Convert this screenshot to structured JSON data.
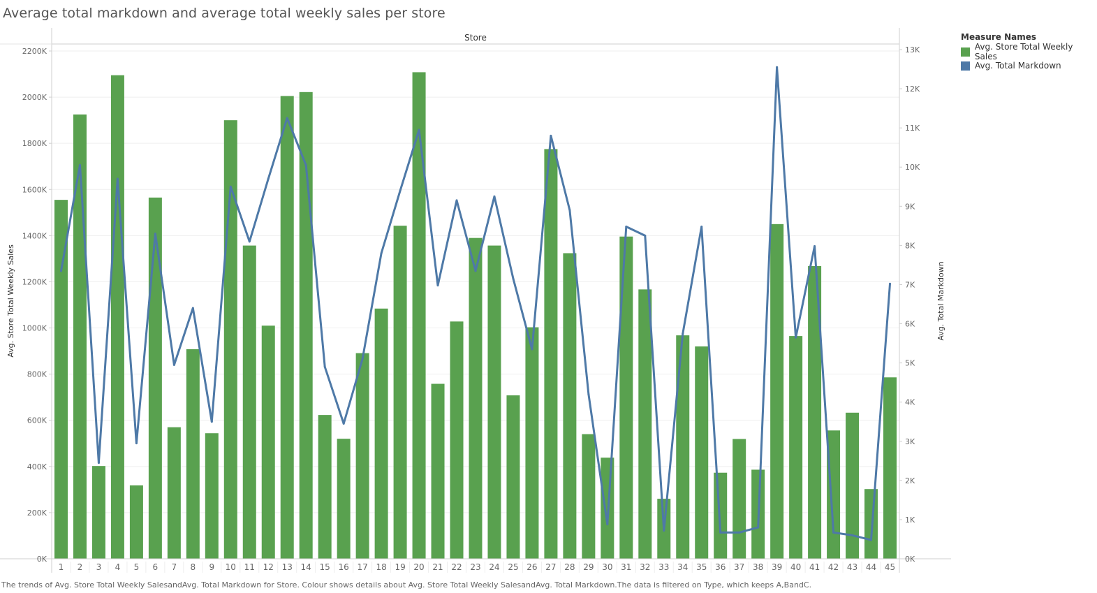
{
  "title": "Average total markdown and average total weekly sales per store",
  "caption": "The trends of Avg. Store Total Weekly SalesandAvg. Total Markdown for Store. Colour shows details about Avg. Store Total Weekly SalesandAvg. Total Markdown.The data is filtered on Type, which keeps A,BandC.",
  "legend": {
    "title": "Measure Names",
    "items": [
      {
        "label": "Avg. Store Total Weekly Sales",
        "color": "#59a14f"
      },
      {
        "label": "Avg. Total Markdown",
        "color": "#4e79a7"
      }
    ]
  },
  "chart_data": {
    "type": "bar",
    "title": "Average total markdown and average total weekly sales per store",
    "header_label": "Store",
    "xlabel": "",
    "ylabel": "Avg. Store Total Weekly Sales",
    "y2label": "Avg. Total Markdown",
    "ylim": [
      0,
      2200000
    ],
    "y2lim": [
      0,
      13000
    ],
    "yticks": [
      "0K",
      "200K",
      "400K",
      "600K",
      "800K",
      "1000K",
      "1200K",
      "1400K",
      "1600K",
      "1800K",
      "2000K",
      "2200K"
    ],
    "y2ticks": [
      "0K",
      "1K",
      "2K",
      "3K",
      "4K",
      "5K",
      "6K",
      "7K",
      "8K",
      "9K",
      "10K",
      "11K",
      "12K",
      "13K"
    ],
    "grid": true,
    "legend_position": "top-right",
    "categories": [
      "1",
      "2",
      "3",
      "4",
      "5",
      "6",
      "7",
      "8",
      "9",
      "10",
      "11",
      "12",
      "13",
      "14",
      "15",
      "16",
      "17",
      "18",
      "19",
      "20",
      "21",
      "22",
      "23",
      "24",
      "25",
      "26",
      "27",
      "28",
      "29",
      "30",
      "31",
      "32",
      "33",
      "34",
      "35",
      "36",
      "37",
      "38",
      "39",
      "40",
      "41",
      "42",
      "43",
      "44",
      "45"
    ],
    "series": [
      {
        "name": "Avg. Store Total Weekly Sales",
        "type": "bar",
        "axis": "left",
        "color": "#59a14f",
        "values": [
          1555000,
          1925000,
          402000,
          2095000,
          318000,
          1565000,
          570000,
          908000,
          544000,
          1900000,
          1357000,
          1010000,
          2005000,
          2022000,
          623000,
          520000,
          891000,
          1084000,
          1443000,
          2108000,
          758000,
          1028000,
          1390000,
          1357000,
          708000,
          1003000,
          1775000,
          1324000,
          540000,
          438000,
          1396000,
          1167000,
          260000,
          968000,
          920000,
          373000,
          519000,
          386000,
          1450000,
          965000,
          1268000,
          556000,
          633000,
          302000,
          786000
        ]
      },
      {
        "name": "Avg. Total Markdown",
        "type": "line",
        "axis": "right",
        "color": "#4e79a7",
        "values": [
          7350,
          10050,
          2450,
          9700,
          2950,
          8300,
          4950,
          6400,
          3500,
          9500,
          8100,
          9700,
          11250,
          10050,
          4900,
          3450,
          5100,
          7800,
          9400,
          10950,
          6980,
          9150,
          7350,
          9250,
          7150,
          5350,
          10800,
          8900,
          4200,
          880,
          8480,
          8250,
          720,
          5750,
          8480,
          670,
          670,
          800,
          12550,
          5650,
          7980,
          670,
          600,
          480,
          7020
        ]
      }
    ]
  }
}
